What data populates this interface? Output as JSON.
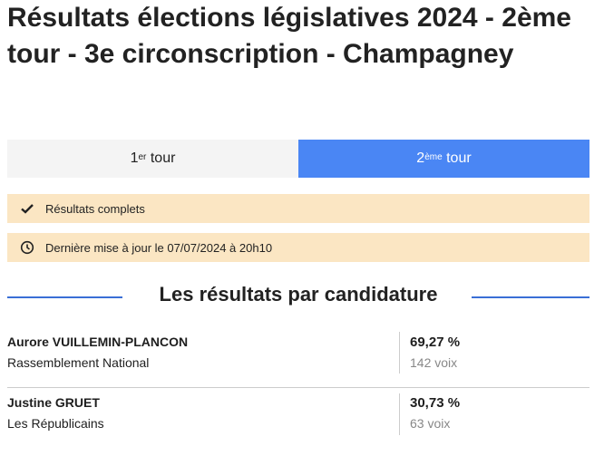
{
  "header": {
    "title": "Résultats élections législatives 2024 - 2ème tour - 3e circonscription - Champagney"
  },
  "tabs": [
    {
      "number": "1",
      "suffix": "er",
      "label": "tour",
      "active": false
    },
    {
      "number": "2",
      "suffix": "ème",
      "label": "tour",
      "active": true
    }
  ],
  "status": [
    {
      "icon": "check",
      "text": "Résultats complets"
    },
    {
      "icon": "clock",
      "text": "Dernière mise à jour le 07/07/2024 à 20h10"
    }
  ],
  "section": {
    "title": "Les résultats par candidature"
  },
  "candidates": [
    {
      "name": "Aurore VUILLEMIN-PLANCON",
      "party": "Rassemblement National",
      "percent": "69,27 %",
      "votes": "142 voix"
    },
    {
      "name": "Justine GRUET",
      "party": "Les Républicains",
      "percent": "30,73 %",
      "votes": "63 voix"
    }
  ]
}
